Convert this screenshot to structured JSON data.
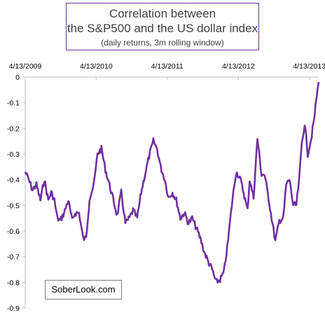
{
  "chart_data": {
    "type": "line",
    "title": "Correlation between the S&P500 and the US dollar index",
    "title_lines": [
      "Correlation between",
      "the S&P500 and the US dollar index"
    ],
    "subtitle": "(daily returns, 3m rolling window)",
    "xlabel": "",
    "ylabel": "",
    "x_ticks": [
      "4/13/2009",
      "4/13/2010",
      "4/13/2011",
      "4/13/2012",
      "4/13/2013"
    ],
    "x_range": [
      "2009-04-13",
      "2013-05-31"
    ],
    "ylim": [
      -0.9,
      0
    ],
    "y_ticks": [
      0,
      -0.1,
      -0.2,
      -0.3,
      -0.4,
      -0.5,
      -0.6,
      -0.7,
      -0.8,
      -0.9
    ],
    "y_tick_labels": [
      "0",
      "-0.1",
      "-0.2",
      "-0.3",
      "-0.4",
      "-0.5",
      "-0.6",
      "-0.7",
      "-0.8",
      "-0.9"
    ],
    "x_axis_position": "top",
    "grid": false,
    "line_color": "#7030A0",
    "series": [
      {
        "x": [
          "2009-04-13",
          "2009-05-01",
          "2009-05-20",
          "2009-06-10",
          "2009-06-30",
          "2009-07-20",
          "2009-08-10",
          "2009-08-25",
          "2009-09-10",
          "2009-09-25",
          "2009-10-10",
          "2009-10-30",
          "2009-11-20",
          "2009-12-10",
          "2009-12-25",
          "2010-01-15",
          "2010-02-05",
          "2010-02-20",
          "2010-03-10",
          "2010-04-01",
          "2010-04-20",
          "2010-05-10",
          "2010-05-30",
          "2010-06-20",
          "2010-07-10",
          "2010-07-30",
          "2010-08-20",
          "2010-09-10",
          "2010-10-01",
          "2010-10-20",
          "2010-11-10",
          "2010-11-30",
          "2010-12-20",
          "2011-01-10",
          "2011-02-01",
          "2011-02-20",
          "2011-03-10",
          "2011-04-01",
          "2011-04-20",
          "2011-05-10",
          "2011-05-30",
          "2011-06-20",
          "2011-07-10",
          "2011-08-01",
          "2011-08-20",
          "2011-09-10",
          "2011-10-01",
          "2011-10-20",
          "2011-11-10",
          "2011-11-30",
          "2011-12-20",
          "2012-01-10",
          "2012-01-30",
          "2012-02-20",
          "2012-03-10",
          "2012-04-01",
          "2012-04-20",
          "2012-05-10",
          "2012-05-30",
          "2012-06-10",
          "2012-06-30",
          "2012-07-20",
          "2012-08-10",
          "2012-08-25",
          "2012-09-15",
          "2012-10-01",
          "2012-10-20",
          "2012-11-10",
          "2012-11-30",
          "2012-12-15",
          "2013-01-01",
          "2013-01-20",
          "2013-02-05",
          "2013-02-20",
          "2013-03-05",
          "2013-03-20",
          "2013-04-05",
          "2013-04-20",
          "2013-05-05",
          "2013-05-20",
          "2013-05-31"
        ],
        "y": [
          -0.37,
          -0.4,
          -0.44,
          -0.42,
          -0.48,
          -0.4,
          -0.48,
          -0.45,
          -0.48,
          -0.55,
          -0.56,
          -0.53,
          -0.48,
          -0.56,
          -0.53,
          -0.53,
          -0.63,
          -0.63,
          -0.47,
          -0.42,
          -0.3,
          -0.28,
          -0.36,
          -0.42,
          -0.48,
          -0.54,
          -0.45,
          -0.57,
          -0.55,
          -0.52,
          -0.55,
          -0.45,
          -0.38,
          -0.31,
          -0.25,
          -0.28,
          -0.35,
          -0.4,
          -0.47,
          -0.45,
          -0.48,
          -0.55,
          -0.53,
          -0.57,
          -0.55,
          -0.59,
          -0.63,
          -0.68,
          -0.72,
          -0.75,
          -0.8,
          -0.79,
          -0.76,
          -0.64,
          -0.5,
          -0.37,
          -0.39,
          -0.45,
          -0.52,
          -0.4,
          -0.47,
          -0.24,
          -0.38,
          -0.38,
          -0.47,
          -0.55,
          -0.64,
          -0.56,
          -0.55,
          -0.42,
          -0.4,
          -0.5,
          -0.5,
          -0.4,
          -0.26,
          -0.18,
          -0.3,
          -0.25,
          -0.18,
          -0.08,
          -0.02
        ]
      }
    ]
  },
  "watermark": "SoberLook.com"
}
